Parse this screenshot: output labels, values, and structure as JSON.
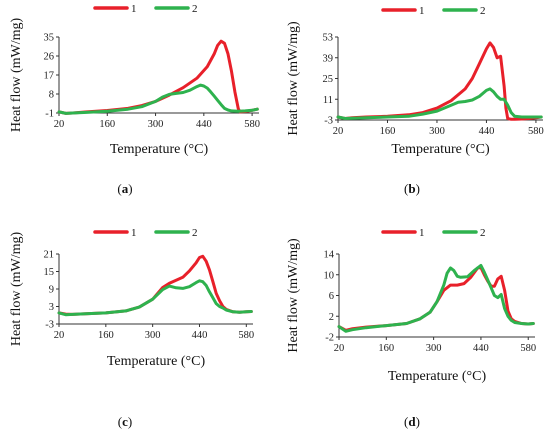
{
  "colors": {
    "series1": "#e8202a",
    "series2": "#2eb24e",
    "axis": "#333333"
  },
  "chart_data": [
    {
      "type": "line",
      "caption_letter": "a",
      "xlabel": "Temperature (°C)",
      "ylabel": "Heat flow (mW/mg)",
      "xlim": [
        20,
        600
      ],
      "ylim": [
        -1,
        35
      ],
      "xticks": [
        "20",
        "160",
        "300",
        "440",
        "580"
      ],
      "yticks": [
        "-1",
        "8",
        "17",
        "26",
        "35"
      ],
      "legend": [
        "1",
        "2"
      ],
      "series": [
        {
          "name": "1",
          "x": [
            20,
            40,
            60,
            100,
            160,
            220,
            260,
            300,
            340,
            380,
            420,
            450,
            470,
            480,
            490,
            500,
            510,
            520,
            530,
            540,
            545,
            560,
            580,
            595
          ],
          "y": [
            -0.5,
            -1.2,
            -1,
            -0.5,
            0.2,
            1.2,
            2.5,
            4.5,
            7.5,
            11,
            15.5,
            21,
            27,
            31,
            33,
            32,
            27,
            19,
            9,
            1,
            -0.5,
            -0.3,
            0.3,
            0.8
          ]
        },
        {
          "name": "2",
          "x": [
            20,
            40,
            60,
            100,
            160,
            220,
            260,
            300,
            320,
            340,
            360,
            380,
            400,
            420,
            430,
            440,
            450,
            460,
            470,
            480,
            490,
            500,
            510,
            520,
            540,
            560,
            580,
            595
          ],
          "y": [
            -0.5,
            -1.2,
            -1,
            -0.7,
            -0.2,
            0.8,
            2,
            4.5,
            6.5,
            7.8,
            8.3,
            8.7,
            9.8,
            11.5,
            12.2,
            11.8,
            10.8,
            9,
            7,
            5,
            3,
            1.2,
            0.4,
            0,
            -0.2,
            0,
            0.3,
            0.8
          ]
        }
      ]
    },
    {
      "type": "line",
      "caption_letter": "b",
      "xlabel": "Temperature (°C)",
      "ylabel": "Heat flow (mW/mg)",
      "xlim": [
        20,
        600
      ],
      "ylim": [
        -3,
        53
      ],
      "xticks": [
        "20",
        "160",
        "300",
        "440",
        "580"
      ],
      "yticks": [
        "-3",
        "11",
        "25",
        "39",
        "53"
      ],
      "legend": [
        "1",
        "2"
      ],
      "series": [
        {
          "name": "1",
          "x": [
            20,
            40,
            60,
            100,
            160,
            220,
            260,
            300,
            340,
            380,
            400,
            420,
            440,
            450,
            460,
            470,
            480,
            490,
            495,
            500,
            510,
            520,
            540,
            560,
            580,
            595
          ],
          "y": [
            -1,
            -2,
            -1.5,
            -1,
            -0.5,
            0.5,
            2,
            5,
            10,
            18,
            25,
            35,
            45,
            49,
            46,
            39,
            40,
            20,
            5,
            -2,
            -2.5,
            -2.5,
            -2.3,
            -2,
            -1.5,
            -1
          ]
        },
        {
          "name": "2",
          "x": [
            20,
            40,
            60,
            100,
            160,
            220,
            260,
            300,
            340,
            360,
            380,
            400,
            420,
            440,
            450,
            460,
            470,
            480,
            490,
            500,
            510,
            520,
            540,
            560,
            580,
            595
          ],
          "y": [
            -1,
            -2,
            -1.8,
            -1.5,
            -1,
            -0.5,
            1,
            3,
            7,
            9,
            9.5,
            10.5,
            13,
            17,
            18,
            16,
            13,
            11,
            11,
            7,
            2,
            -0.5,
            -1,
            -1,
            -1,
            -1
          ]
        }
      ]
    },
    {
      "type": "line",
      "caption_letter": "c",
      "xlabel": "Temperature (°C)",
      "ylabel": "Heat flow (mW/mg)",
      "xlim": [
        20,
        600
      ],
      "ylim": [
        -3,
        21
      ],
      "xticks": [
        "20",
        "160",
        "300",
        "440",
        "580"
      ],
      "yticks": [
        "-3",
        "3",
        "9",
        "15",
        "21"
      ],
      "legend": [
        "1",
        "2"
      ],
      "series": [
        {
          "name": "1",
          "x": [
            20,
            40,
            60,
            100,
            160,
            220,
            260,
            300,
            330,
            350,
            370,
            390,
            410,
            430,
            440,
            450,
            460,
            470,
            480,
            490,
            500,
            510,
            520,
            540,
            560,
            580,
            595
          ],
          "y": [
            0.8,
            0.4,
            0.3,
            0.5,
            0.8,
            1.5,
            2.8,
            5.5,
            9.5,
            11,
            12,
            13,
            15.2,
            18,
            19.8,
            20.2,
            18.5,
            15.5,
            11.5,
            7.5,
            5,
            3,
            2,
            1.2,
            1,
            1.2,
            1.3
          ]
        },
        {
          "name": "2",
          "x": [
            20,
            40,
            60,
            100,
            160,
            220,
            260,
            300,
            330,
            350,
            370,
            390,
            410,
            430,
            440,
            450,
            460,
            470,
            480,
            490,
            500,
            510,
            520,
            540,
            560,
            580,
            595
          ],
          "y": [
            0.8,
            0.2,
            0.3,
            0.5,
            0.8,
            1.5,
            2.8,
            5.5,
            8.8,
            10,
            9.4,
            9.2,
            9.8,
            11.2,
            11.8,
            11.5,
            10.2,
            8,
            6,
            4,
            3,
            2.5,
            1.8,
            1.2,
            1,
            1.2,
            1.3
          ]
        }
      ]
    },
    {
      "type": "line",
      "caption_letter": "d",
      "xlabel": "Temperature (°C)",
      "ylabel": "Heat flow (mW/mg)",
      "xlim": [
        20,
        600
      ],
      "ylim": [
        -2,
        14
      ],
      "xticks": [
        "20",
        "160",
        "300",
        "440",
        "580"
      ],
      "yticks": [
        "-2",
        "2",
        "6",
        "10",
        "14"
      ],
      "legend": [
        "1",
        "2"
      ],
      "series": [
        {
          "name": "1",
          "x": [
            20,
            40,
            60,
            100,
            160,
            220,
            260,
            290,
            310,
            330,
            350,
            370,
            390,
            410,
            430,
            440,
            450,
            460,
            470,
            480,
            490,
            500,
            510,
            520,
            530,
            540,
            560,
            580,
            595
          ],
          "y": [
            0,
            -0.7,
            -0.4,
            -0.1,
            0.2,
            0.6,
            1.5,
            2.8,
            4.8,
            7,
            8,
            8,
            8.3,
            9.5,
            11.3,
            11.4,
            10,
            8.8,
            7.8,
            7.8,
            9.2,
            9.7,
            7,
            3,
            1.5,
            1,
            0.6,
            0.5,
            0.6
          ]
        },
        {
          "name": "2",
          "x": [
            20,
            40,
            60,
            100,
            160,
            220,
            260,
            290,
            310,
            330,
            340,
            350,
            360,
            370,
            380,
            400,
            420,
            440,
            450,
            460,
            470,
            480,
            490,
            500,
            510,
            520,
            530,
            540,
            560,
            580,
            595
          ],
          "y": [
            0,
            -0.9,
            -0.6,
            -0.2,
            0.2,
            0.6,
            1.5,
            2.8,
            4.8,
            8,
            10.3,
            11.3,
            10.8,
            9.7,
            9.5,
            9.6,
            10.8,
            11.8,
            10.5,
            9,
            7.5,
            6,
            5.6,
            6.2,
            3.5,
            2,
            1.2,
            0.8,
            0.6,
            0.5,
            0.6
          ]
        }
      ]
    }
  ]
}
